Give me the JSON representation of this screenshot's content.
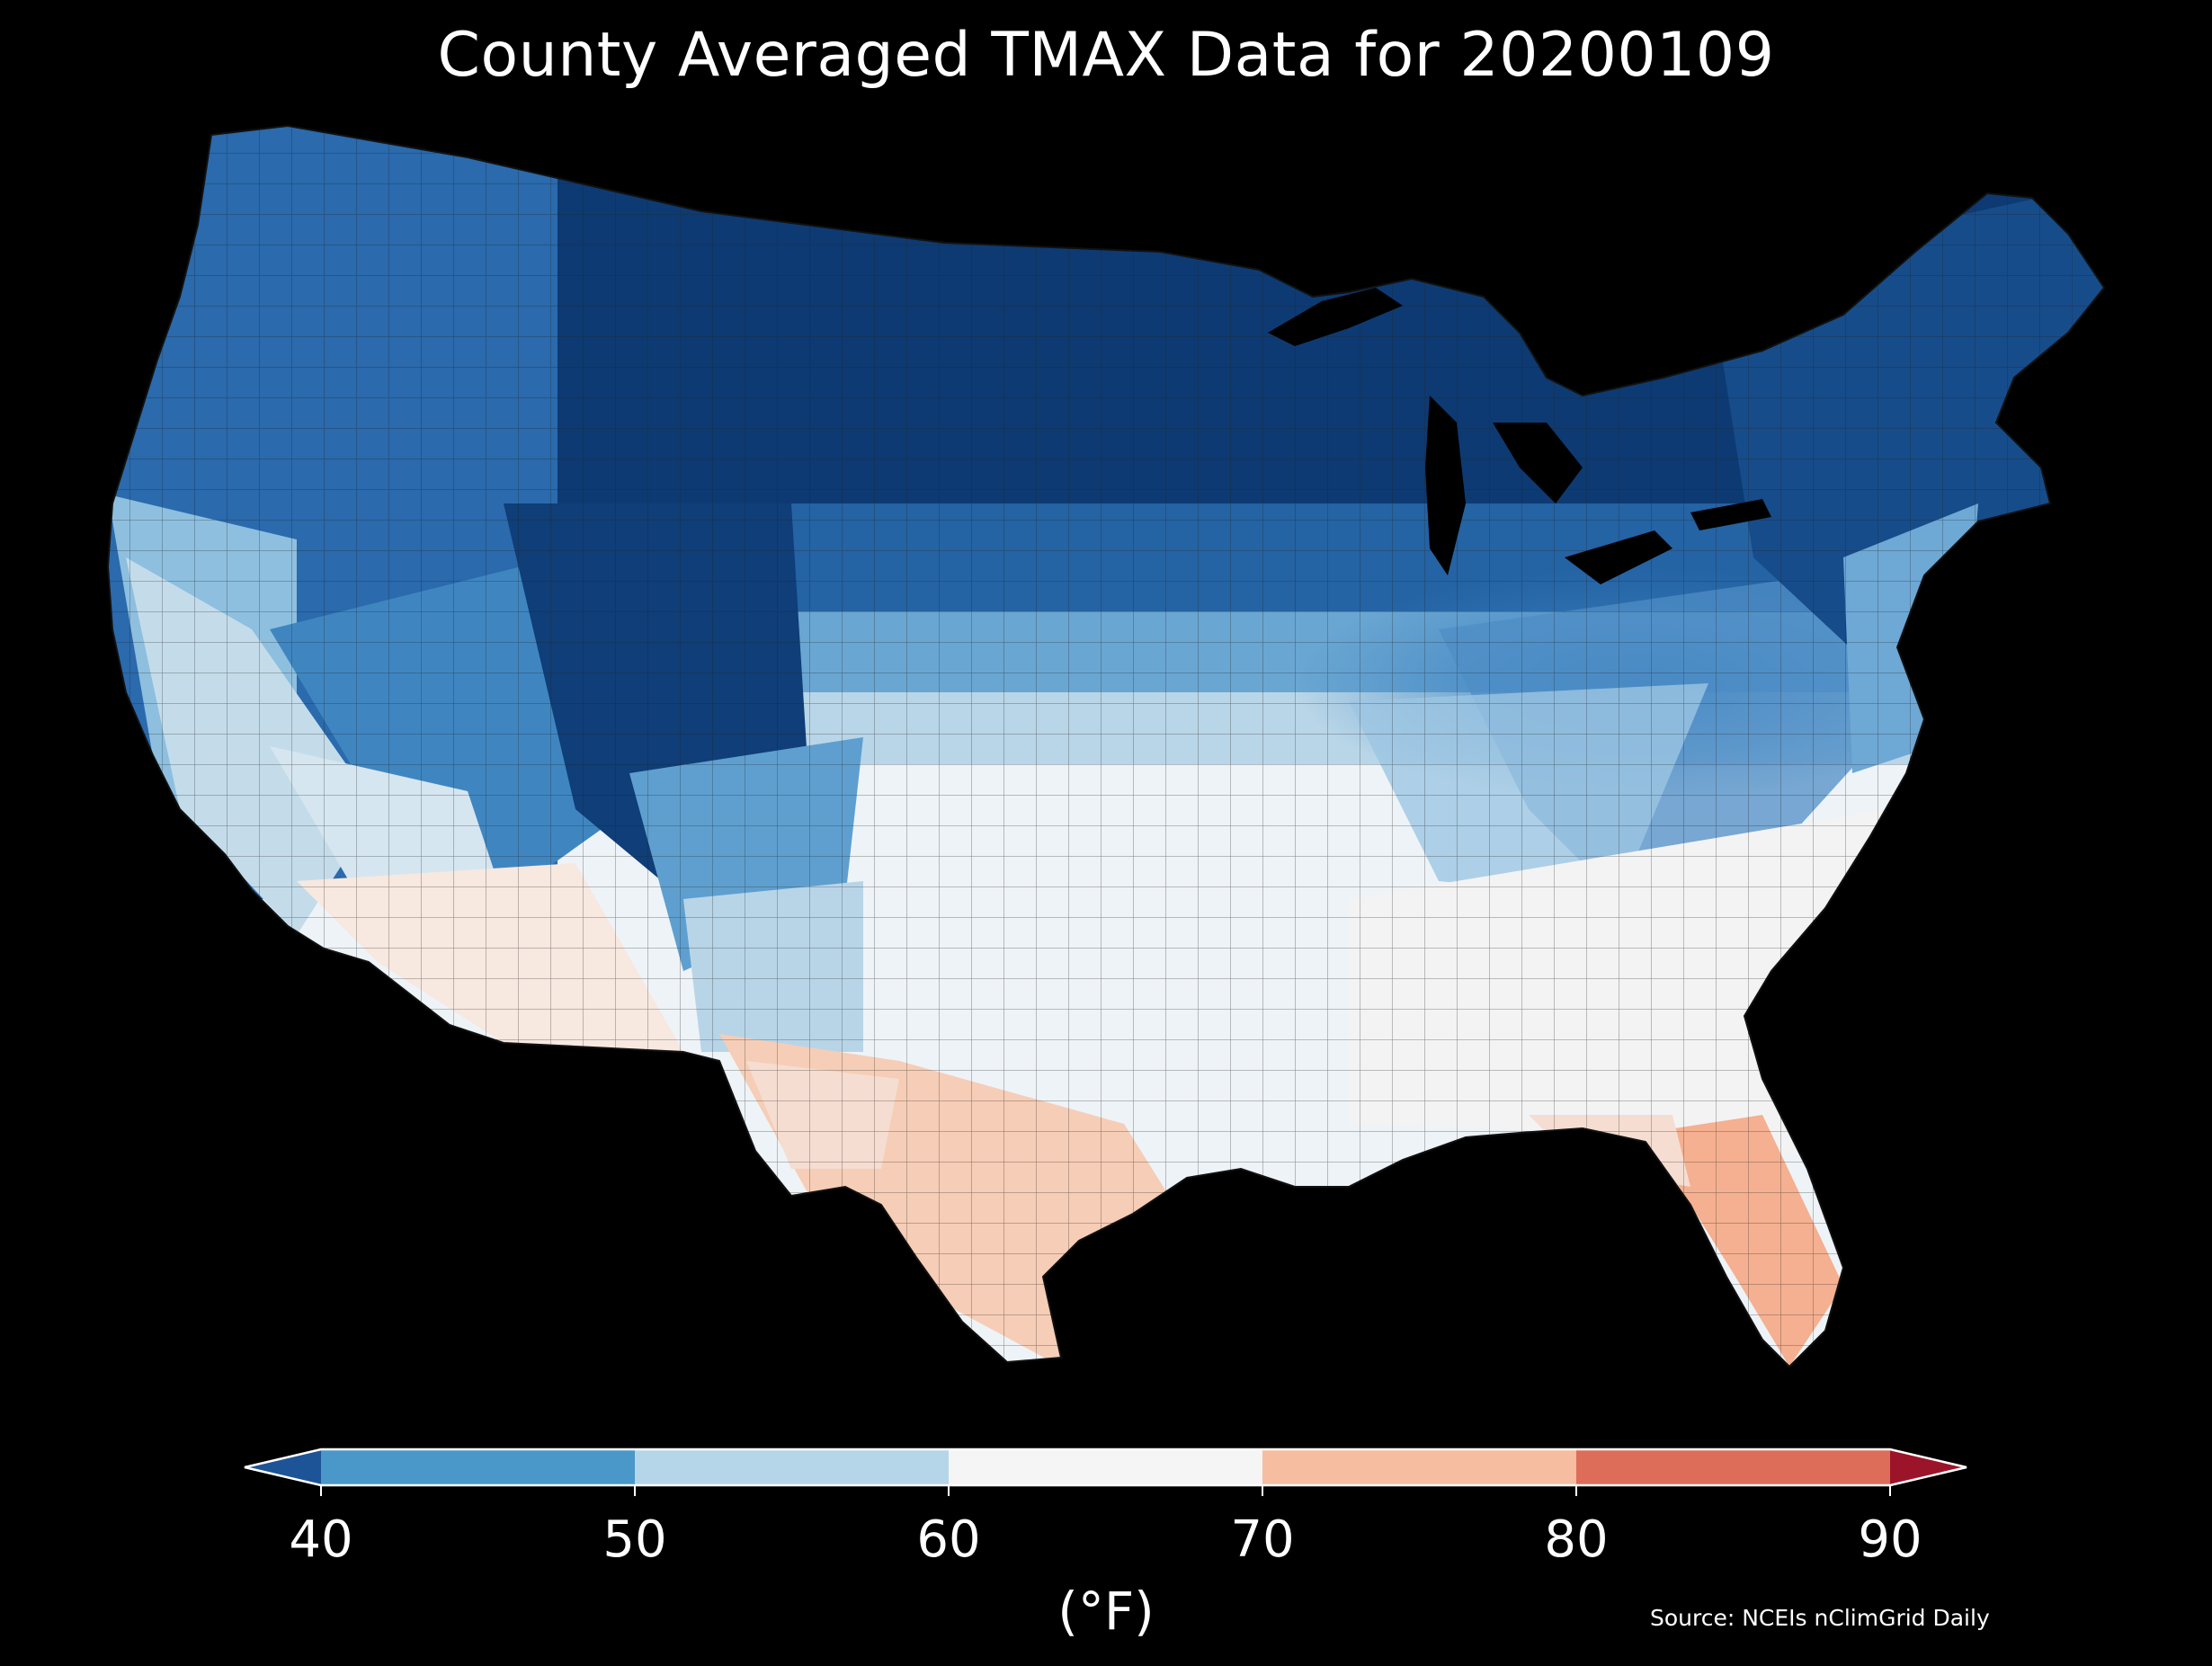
{
  "title": "County Averaged TMAX Data for 20200109",
  "colorbar": {
    "unit_label": "(°F)",
    "ticks": [
      "40",
      "50",
      "60",
      "70",
      "80",
      "90"
    ],
    "bins": [
      {
        "range": "<40",
        "color": "#1d5497"
      },
      {
        "range": "40-50",
        "color": "#4a98c9"
      },
      {
        "range": "50-60",
        "color": "#b5d6e8"
      },
      {
        "range": "60-70",
        "color": "#f5f5f5"
      },
      {
        "range": "70-80",
        "color": "#f7bda0"
      },
      {
        "range": "80-90",
        "color": "#dd6d59"
      },
      {
        "range": ">90",
        "color": "#9c1429"
      }
    ]
  },
  "map": {
    "region": "Contiguous United States",
    "unit": "county",
    "variable": "TMAX",
    "date": "20200109",
    "regional_colors": {
      "north_plains_rockies": "#0d3a72",
      "pacific_northwest": "#2a6aad",
      "great_basin": "#3f86c1",
      "california_coast": "#b9d6e8",
      "southwest": "#f7e8e0",
      "central_plains": "#eef3f7",
      "ohio_valley": "#7fb2d8",
      "southeast": "#f3f3f3",
      "texas_south": "#f6cdb6",
      "florida_south": "#f4b090",
      "northeast": "#164c8a"
    }
  },
  "source": "Source: NCEIs nClimGrid Daily"
}
